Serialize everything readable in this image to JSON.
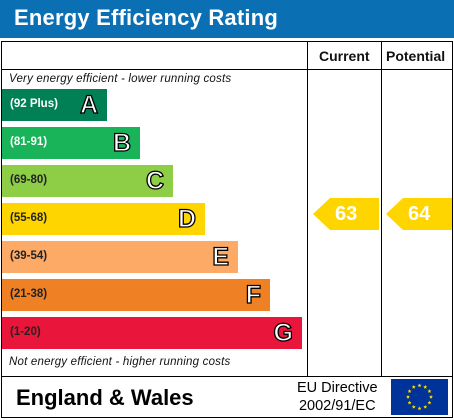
{
  "title": "Energy Efficiency Rating",
  "columns": {
    "current": "Current",
    "potential": "Potential"
  },
  "notes": {
    "top": "Very energy efficient - lower running costs",
    "bottom": "Not energy efficient - higher running costs"
  },
  "bands": [
    {
      "range": "(92 Plus)",
      "letter": "A",
      "color": "#008054",
      "text_color": "#ffffff"
    },
    {
      "range": "(81-91)",
      "letter": "B",
      "color": "#19b459",
      "text_color": "#ffffff"
    },
    {
      "range": "(69-80)",
      "letter": "C",
      "color": "#8dce46",
      "text_color": "#222222"
    },
    {
      "range": "(55-68)",
      "letter": "D",
      "color": "#ffd500",
      "text_color": "#222222"
    },
    {
      "range": "(39-54)",
      "letter": "E",
      "color": "#fcaa65",
      "text_color": "#222222"
    },
    {
      "range": "(21-38)",
      "letter": "F",
      "color": "#ef8023",
      "text_color": "#222222"
    },
    {
      "range": "(1-20)",
      "letter": "G",
      "color": "#e9153b",
      "text_color": "#222222"
    }
  ],
  "ratings": {
    "current": {
      "value": "63",
      "band": "D",
      "color": "#ffd500"
    },
    "potential": {
      "value": "64",
      "band": "D",
      "color": "#ffd500"
    }
  },
  "footer": {
    "region": "England & Wales",
    "directive_line1": "EU Directive",
    "directive_line2": "2002/91/EC",
    "flag_icon": "eu-flag-icon",
    "flag_color": "#003399",
    "star_color": "#ffdd00"
  }
}
